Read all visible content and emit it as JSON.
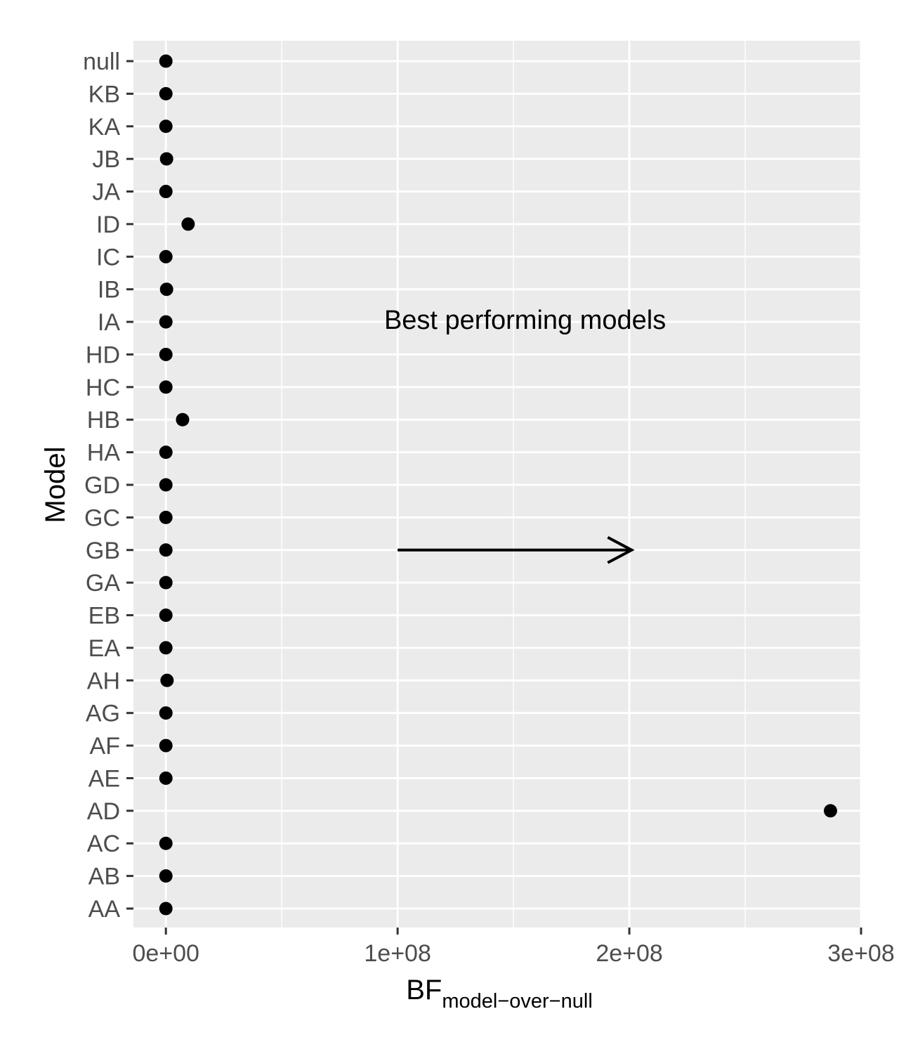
{
  "chart_data": {
    "type": "scatter",
    "xlabel": "BF",
    "xlabel_subscript": "model−over−null",
    "ylabel": "Model",
    "xlim": [
      -14000000,
      300000000
    ],
    "x_ticks": [
      0,
      100000000,
      200000000,
      300000000
    ],
    "x_tick_labels": [
      "0e+00",
      "1e+08",
      "2e+08",
      "3e+08"
    ],
    "categories": [
      "AA",
      "AB",
      "AC",
      "AD",
      "AE",
      "AF",
      "AG",
      "AH",
      "EA",
      "EB",
      "GA",
      "GB",
      "GC",
      "GD",
      "HA",
      "HB",
      "HC",
      "HD",
      "IA",
      "IB",
      "IC",
      "ID",
      "JA",
      "JB",
      "KA",
      "KB",
      "null"
    ],
    "series": [
      {
        "values": [
          0,
          0,
          0,
          286800000,
          0,
          0,
          0,
          500000,
          0,
          0,
          0,
          0,
          0,
          0,
          0,
          7200000,
          0,
          0,
          0,
          300000,
          0,
          9600000,
          0,
          300000,
          0,
          0,
          0
        ]
      }
    ],
    "annotations": [
      {
        "type": "text",
        "label": "Best performing models",
        "x": 155000000,
        "y_category": "IA"
      },
      {
        "type": "arrow",
        "x_start": 100000000,
        "x_end": 201000000,
        "y_category": "GB"
      }
    ],
    "grid": true,
    "colors": {
      "panel": "#ebebeb",
      "grid": "#ffffff",
      "point": "#000000",
      "tick": "#333333",
      "tick_label": "#4d4d4d"
    }
  }
}
